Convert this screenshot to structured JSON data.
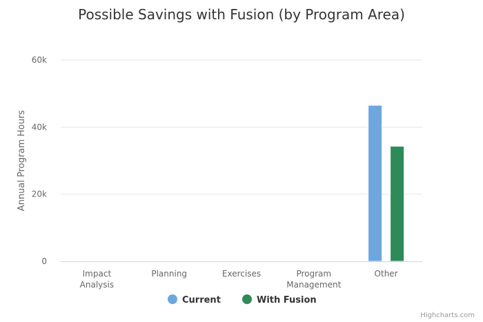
{
  "chart_data": {
    "type": "bar",
    "title": "Possible Savings with Fusion (by Program Area)",
    "ylabel": "Annual Program Hours",
    "xlabel": "",
    "categories": [
      [
        "Impact",
        "Analysis"
      ],
      [
        "Planning"
      ],
      [
        "Exercises"
      ],
      [
        "Program",
        "Management"
      ],
      [
        "Other"
      ]
    ],
    "series": [
      {
        "name": "Current",
        "color": "#6ea6de",
        "values": [
          0,
          0,
          0,
          0,
          46500
        ]
      },
      {
        "name": "With Fusion",
        "color": "#2e8b57",
        "values": [
          0,
          0,
          0,
          0,
          34300
        ]
      }
    ],
    "ylim": [
      0,
      60000
    ],
    "yticks": [
      {
        "value": 0,
        "label": "0"
      },
      {
        "value": 20000,
        "label": "20k"
      },
      {
        "value": 40000,
        "label": "40k"
      },
      {
        "value": 60000,
        "label": "60k"
      }
    ],
    "grid": true,
    "legend": "bottom-center"
  },
  "credits": "Highcharts.com"
}
